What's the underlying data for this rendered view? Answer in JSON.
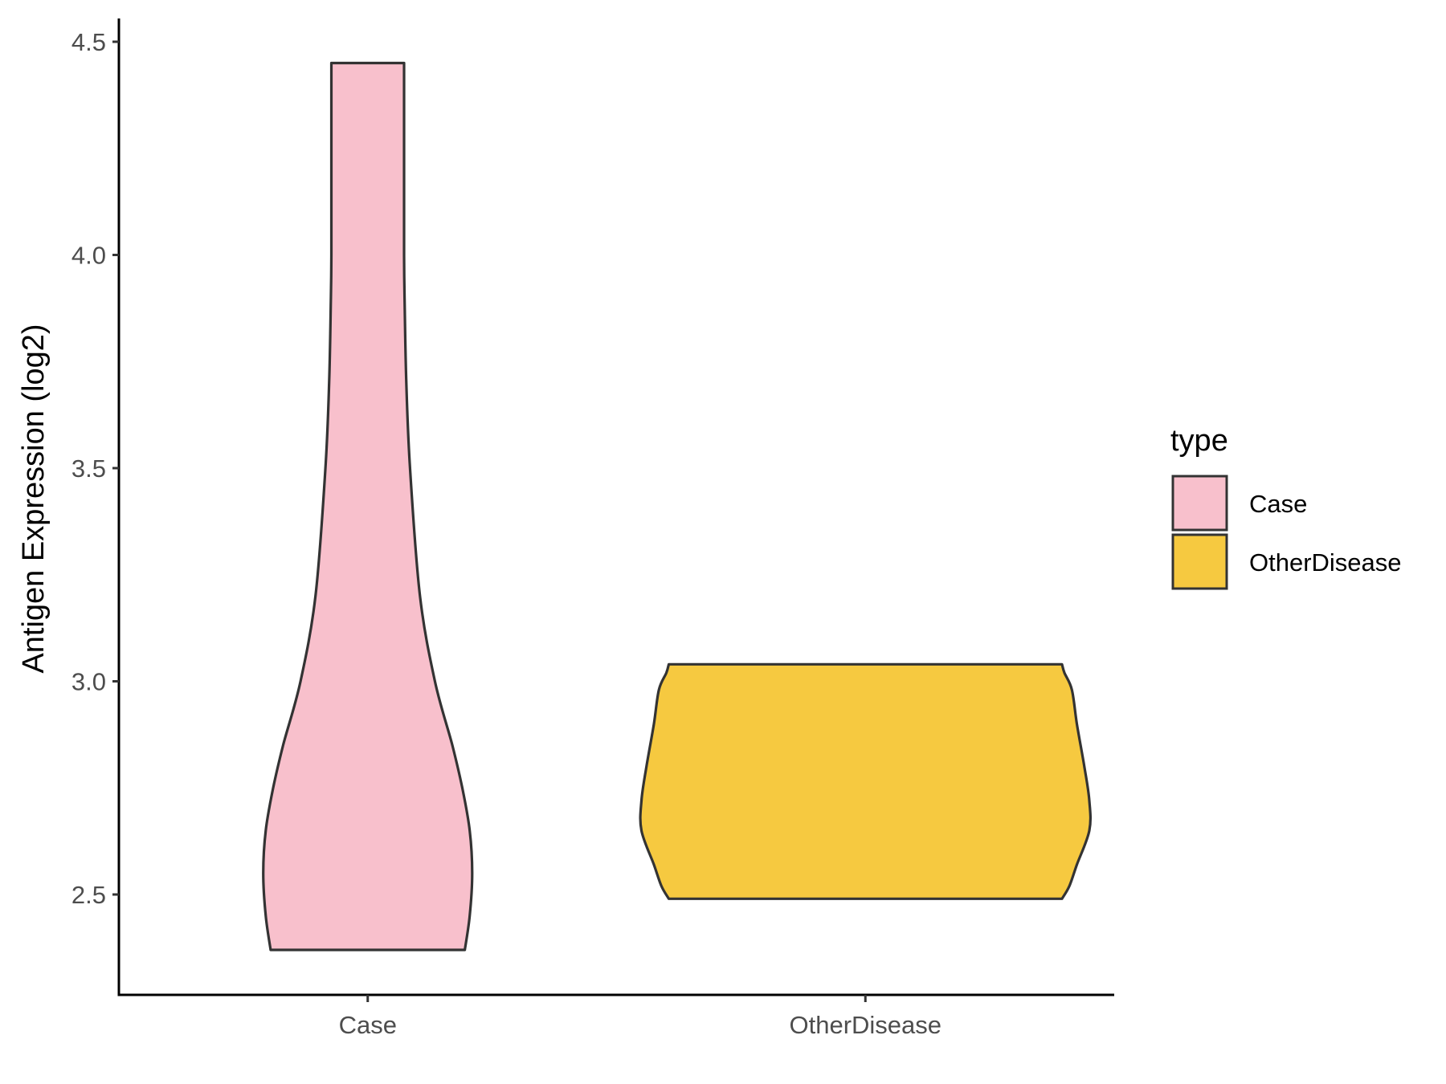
{
  "chart_data": {
    "type": "violin",
    "ylabel": "Antigen Expression (log2)",
    "xlabel": "",
    "categories": [
      "Case",
      "OtherDisease"
    ],
    "y_ticks": [
      "2.5",
      "3.0",
      "3.5",
      "4.0",
      "4.5"
    ],
    "ylim": [
      2.27,
      4.56
    ],
    "legend": {
      "title": "type",
      "placement": "right",
      "entries": [
        {
          "label": "Case",
          "color": "#F8C0CC"
        },
        {
          "label": "OtherDisease",
          "color": "#F6C940"
        }
      ]
    },
    "series": [
      {
        "category": "Case",
        "color": "#F8C0CC",
        "min": 2.37,
        "max": 4.45,
        "density_profile": [
          [
            2.37,
            0.39
          ],
          [
            2.45,
            0.41
          ],
          [
            2.55,
            0.42
          ],
          [
            2.65,
            0.41
          ],
          [
            2.75,
            0.38
          ],
          [
            2.85,
            0.34
          ],
          [
            3.0,
            0.27
          ],
          [
            3.2,
            0.21
          ],
          [
            3.5,
            0.17
          ],
          [
            3.7,
            0.155
          ],
          [
            3.9,
            0.148
          ],
          [
            4.0,
            0.146
          ],
          [
            4.2,
            0.146
          ],
          [
            4.45,
            0.146
          ]
        ]
      },
      {
        "category": "OtherDisease",
        "color": "#F6C940",
        "min": 2.49,
        "max": 3.04,
        "density_profile": [
          [
            2.49,
            0.79
          ],
          [
            2.52,
            0.82
          ],
          [
            2.57,
            0.85
          ],
          [
            2.65,
            0.9
          ],
          [
            2.72,
            0.9
          ],
          [
            2.8,
            0.88
          ],
          [
            2.9,
            0.85
          ],
          [
            2.98,
            0.83
          ],
          [
            3.02,
            0.8
          ],
          [
            3.04,
            0.79
          ]
        ]
      }
    ]
  }
}
